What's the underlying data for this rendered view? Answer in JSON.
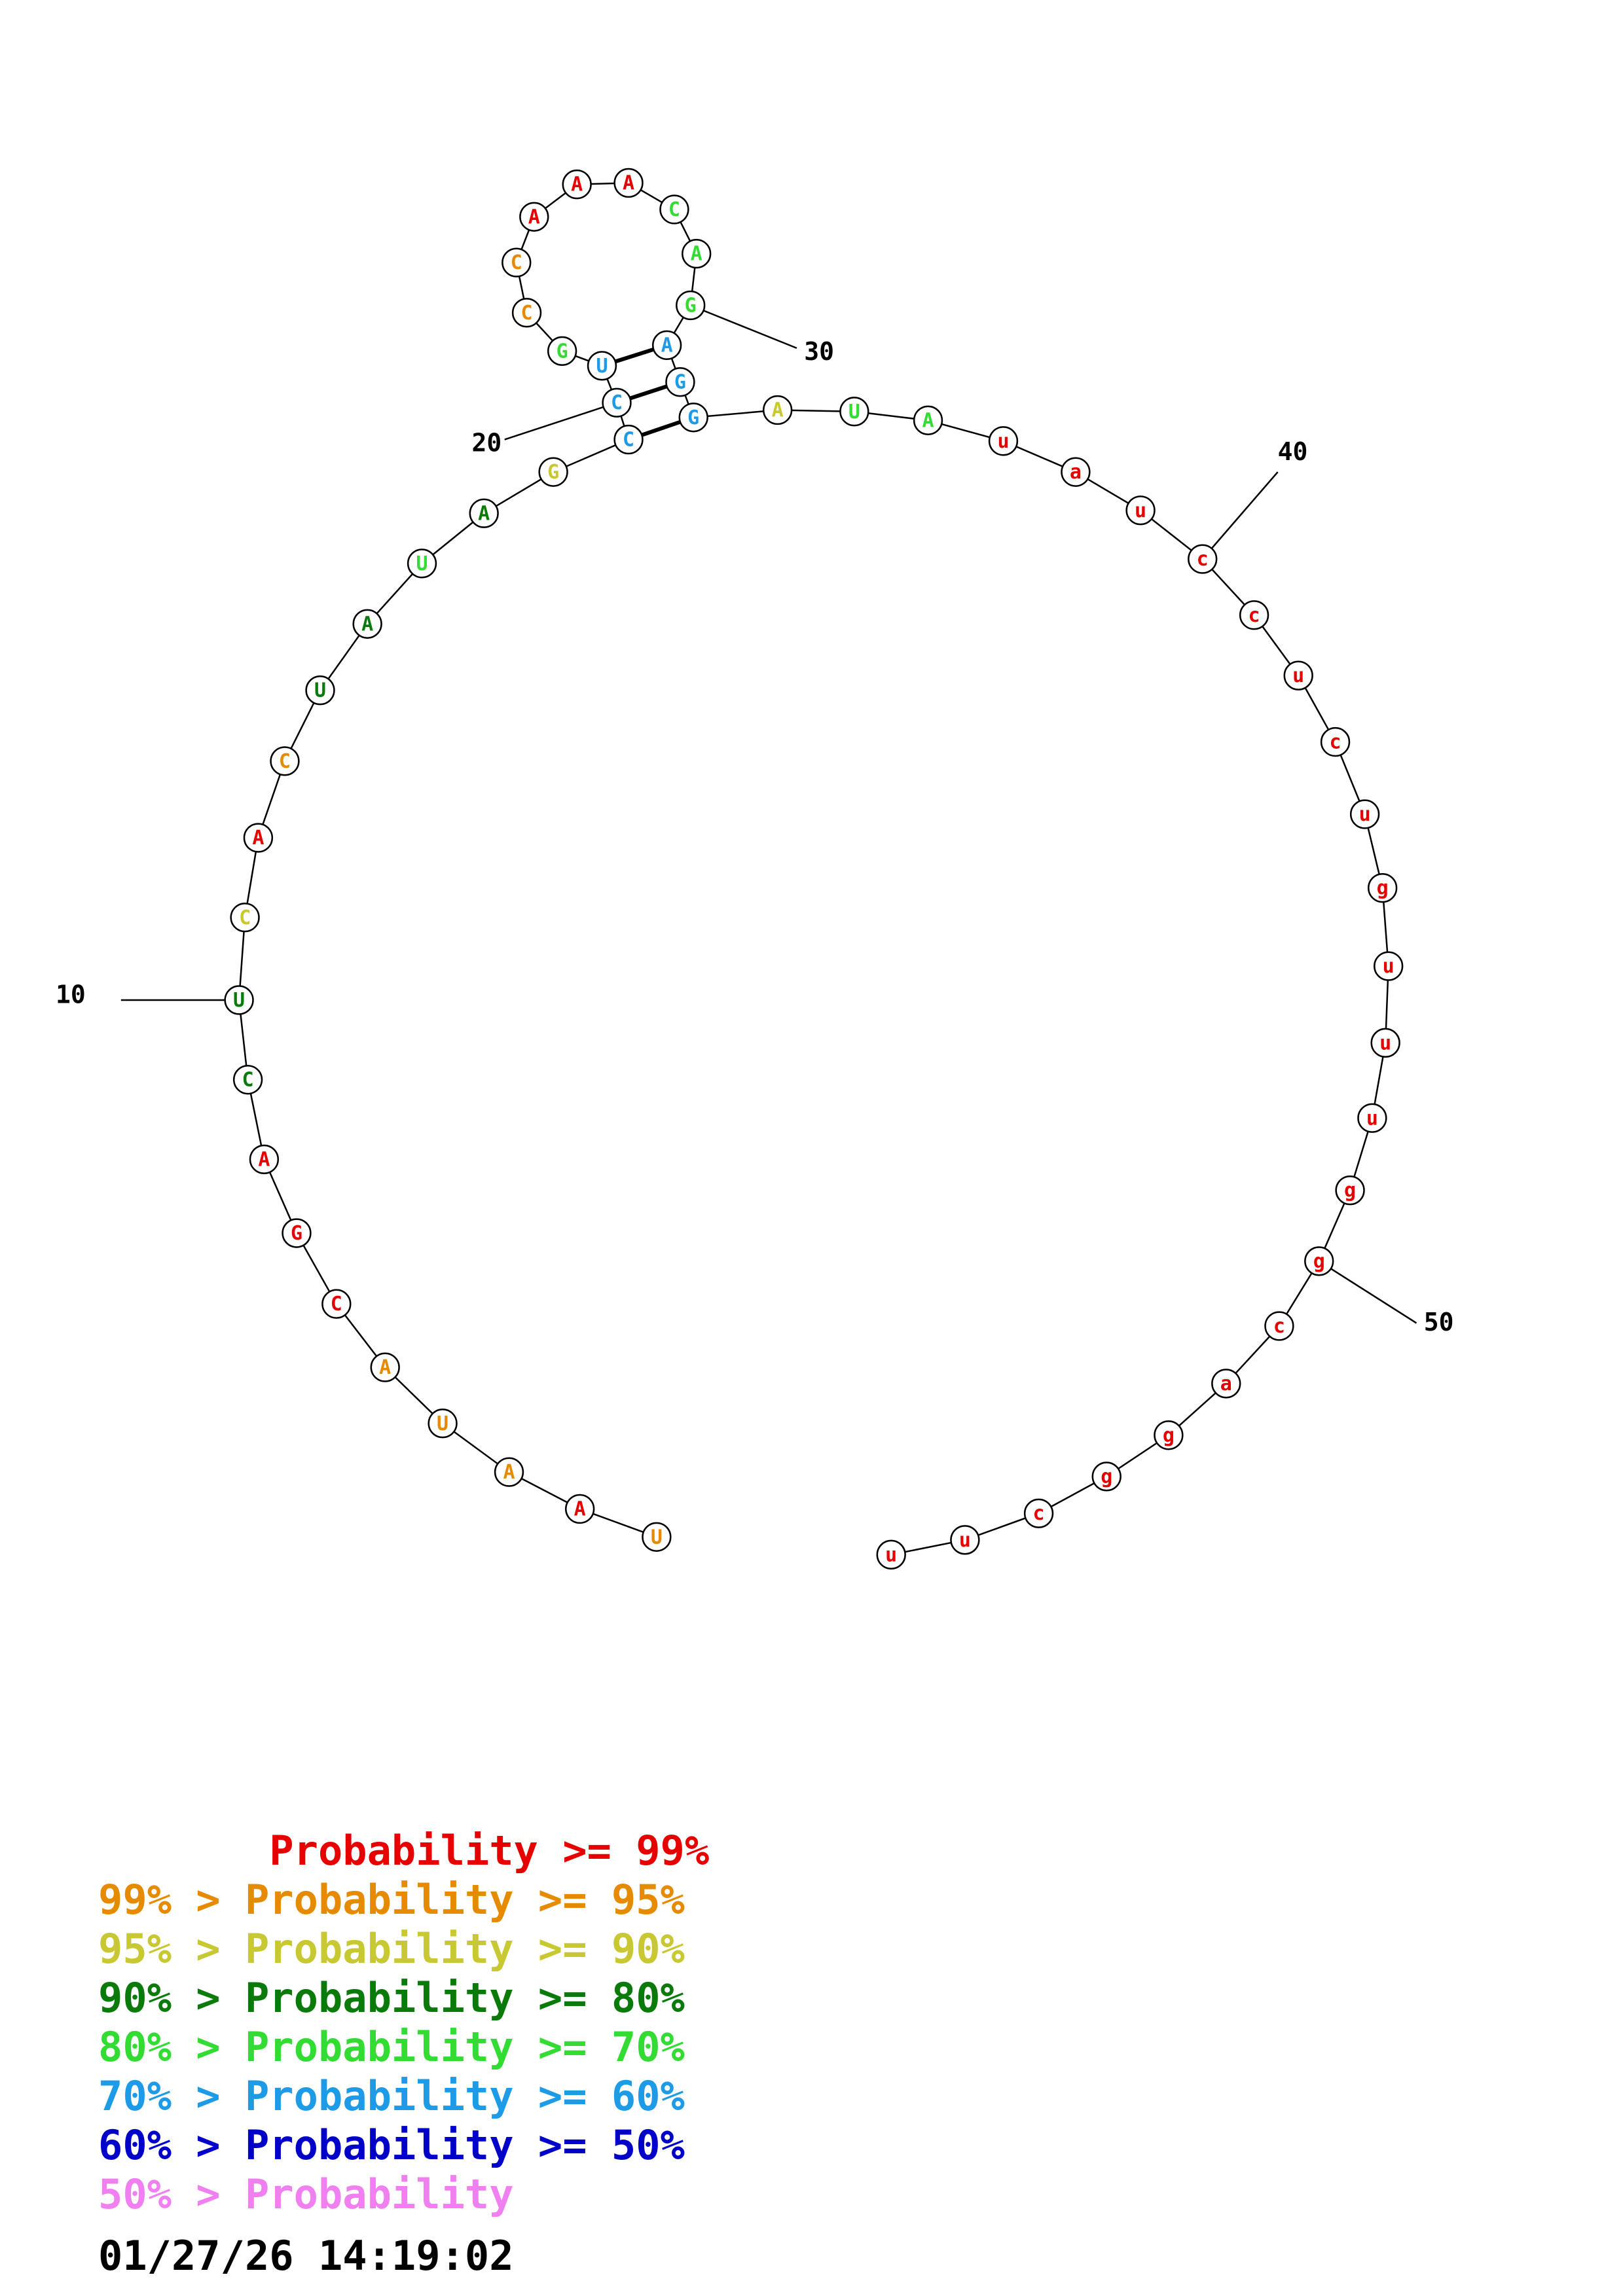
{
  "sequence": [
    {
      "n": 1,
      "base": "U",
      "color": "#e68a00"
    },
    {
      "n": 2,
      "base": "A",
      "color": "#e60000"
    },
    {
      "n": 3,
      "base": "A",
      "color": "#e68a00"
    },
    {
      "n": 4,
      "base": "U",
      "color": "#e68a00"
    },
    {
      "n": 5,
      "base": "A",
      "color": "#e68a00"
    },
    {
      "n": 6,
      "base": "C",
      "color": "#e60000"
    },
    {
      "n": 7,
      "base": "G",
      "color": "#e60000"
    },
    {
      "n": 8,
      "base": "A",
      "color": "#e60000"
    },
    {
      "n": 9,
      "base": "C",
      "color": "#0a7a0a"
    },
    {
      "n": 10,
      "base": "U",
      "color": "#0a7a0a"
    },
    {
      "n": 11,
      "base": "C",
      "color": "#c8c832"
    },
    {
      "n": 12,
      "base": "A",
      "color": "#e60000"
    },
    {
      "n": 13,
      "base": "C",
      "color": "#e68a00"
    },
    {
      "n": 14,
      "base": "U",
      "color": "#0a7a0a"
    },
    {
      "n": 15,
      "base": "A",
      "color": "#0a7a0a"
    },
    {
      "n": 16,
      "base": "U",
      "color": "#32dc32"
    },
    {
      "n": 17,
      "base": "A",
      "color": "#0a7a0a"
    },
    {
      "n": 18,
      "base": "G",
      "color": "#c8c832"
    },
    {
      "n": 19,
      "base": "C",
      "color": "#1e9be6"
    },
    {
      "n": 20,
      "base": "C",
      "color": "#1e9be6"
    },
    {
      "n": 21,
      "base": "U",
      "color": "#1e9be6"
    },
    {
      "n": 22,
      "base": "G",
      "color": "#32dc32"
    },
    {
      "n": 23,
      "base": "C",
      "color": "#e68a00"
    },
    {
      "n": 24,
      "base": "C",
      "color": "#e68a00"
    },
    {
      "n": 25,
      "base": "A",
      "color": "#e60000"
    },
    {
      "n": 26,
      "base": "A",
      "color": "#e60000"
    },
    {
      "n": 27,
      "base": "A",
      "color": "#e60000"
    },
    {
      "n": 28,
      "base": "C",
      "color": "#32dc32"
    },
    {
      "n": 29,
      "base": "A",
      "color": "#32dc32"
    },
    {
      "n": 30,
      "base": "G",
      "color": "#32dc32"
    },
    {
      "n": 31,
      "base": "A",
      "color": "#1e9be6"
    },
    {
      "n": 32,
      "base": "G",
      "color": "#1e9be6"
    },
    {
      "n": 33,
      "base": "G",
      "color": "#1e9be6"
    },
    {
      "n": 34,
      "base": "A",
      "color": "#c8c832"
    },
    {
      "n": 35,
      "base": "U",
      "color": "#32dc32"
    },
    {
      "n": 36,
      "base": "A",
      "color": "#32dc32"
    },
    {
      "n": 37,
      "base": "u",
      "color": "#e60000"
    },
    {
      "n": 38,
      "base": "a",
      "color": "#e60000"
    },
    {
      "n": 39,
      "base": "u",
      "color": "#e60000"
    },
    {
      "n": 40,
      "base": "c",
      "color": "#e60000"
    },
    {
      "n": 41,
      "base": "c",
      "color": "#e60000"
    },
    {
      "n": 42,
      "base": "u",
      "color": "#e60000"
    },
    {
      "n": 43,
      "base": "c",
      "color": "#e60000"
    },
    {
      "n": 44,
      "base": "u",
      "color": "#e60000"
    },
    {
      "n": 45,
      "base": "g",
      "color": "#e60000"
    },
    {
      "n": 46,
      "base": "u",
      "color": "#e60000"
    },
    {
      "n": 47,
      "base": "u",
      "color": "#e60000"
    },
    {
      "n": 48,
      "base": "u",
      "color": "#e60000"
    },
    {
      "n": 49,
      "base": "g",
      "color": "#e60000"
    },
    {
      "n": 50,
      "base": "g",
      "color": "#e60000"
    },
    {
      "n": 51,
      "base": "c",
      "color": "#e60000"
    },
    {
      "n": 52,
      "base": "a",
      "color": "#e60000"
    },
    {
      "n": 53,
      "base": "g",
      "color": "#e60000"
    },
    {
      "n": 54,
      "base": "g",
      "color": "#e60000"
    },
    {
      "n": 55,
      "base": "c",
      "color": "#e60000"
    },
    {
      "n": 56,
      "base": "u",
      "color": "#e60000"
    },
    {
      "n": 57,
      "base": "u",
      "color": "#e60000"
    }
  ],
  "pairs": [
    [
      19,
      33
    ],
    [
      20,
      32
    ],
    [
      21,
      31
    ]
  ],
  "index_labels": [
    {
      "n": 10,
      "text": "10"
    },
    {
      "n": 20,
      "text": "20"
    },
    {
      "n": 30,
      "text": "30"
    },
    {
      "n": 40,
      "text": "40"
    },
    {
      "n": 50,
      "text": "50"
    }
  ],
  "legend": [
    {
      "text": "       Probability >= 99%",
      "color": "#e60000"
    },
    {
      "text": "99% > Probability >= 95%",
      "color": "#e68a00"
    },
    {
      "text": "95% > Probability >= 90%",
      "color": "#c8c832"
    },
    {
      "text": "90% > Probability >= 80%",
      "color": "#0a7a0a"
    },
    {
      "text": "80% > Probability >= 70%",
      "color": "#32dc32"
    },
    {
      "text": "70% > Probability >= 60%",
      "color": "#1e9be6"
    },
    {
      "text": "60% > Probability >= 50%",
      "color": "#0000c8"
    },
    {
      "text": "50% > Probability",
      "color": "#f080f0"
    }
  ],
  "timestamp": "01/27/26 14:19:02"
}
